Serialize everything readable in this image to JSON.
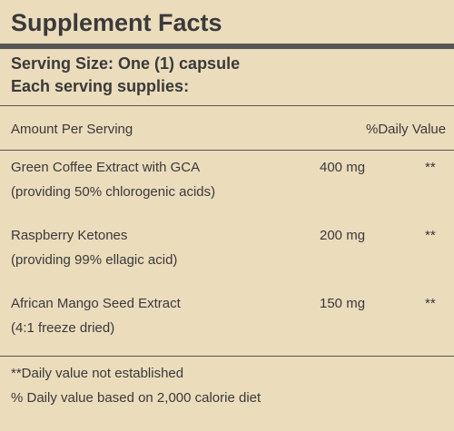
{
  "title": "Supplement Facts",
  "serving_size": "Serving Size: One (1) capsule",
  "serving_supplies": "Each serving supplies:",
  "header": {
    "amount": "Amount Per Serving",
    "daily_value": "%Daily Value"
  },
  "rows": [
    {
      "name": "Green Coffee Extract with GCA",
      "note": "(providing 50% chlorogenic acids)",
      "amount": "400 mg",
      "dv": "**"
    },
    {
      "name": "Raspberry Ketones",
      "note": "(providing 99% ellagic acid)",
      "amount": "200 mg",
      "dv": "**"
    },
    {
      "name": "African Mango Seed Extract",
      "note": "(4:1 freeze dried)",
      "amount": "150 mg",
      "dv": "**"
    }
  ],
  "footnotes": [
    "**Daily value not established",
    "% Daily value based on 2,000 calorie diet"
  ]
}
